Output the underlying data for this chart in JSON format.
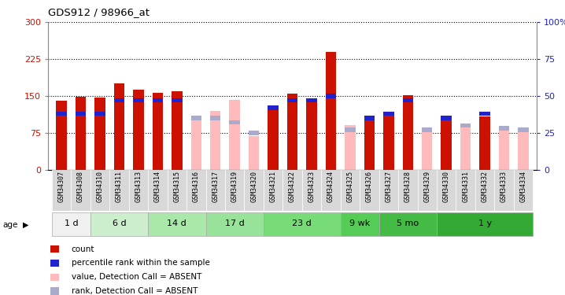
{
  "title": "GDS912 / 98966_at",
  "samples": [
    "GSM34307",
    "GSM34308",
    "GSM34310",
    "GSM34311",
    "GSM34313",
    "GSM34314",
    "GSM34315",
    "GSM34316",
    "GSM34317",
    "GSM34319",
    "GSM34320",
    "GSM34321",
    "GSM34322",
    "GSM34323",
    "GSM34324",
    "GSM34325",
    "GSM34326",
    "GSM34327",
    "GSM34328",
    "GSM34329",
    "GSM34330",
    "GSM34331",
    "GSM34332",
    "GSM34333",
    "GSM34334"
  ],
  "count_values": [
    140,
    148,
    146,
    175,
    162,
    157,
    160,
    null,
    null,
    null,
    null,
    122,
    155,
    145,
    240,
    null,
    100,
    115,
    152,
    null,
    100,
    null,
    108,
    null,
    null
  ],
  "absent_values": [
    null,
    null,
    null,
    null,
    null,
    null,
    null,
    105,
    120,
    142,
    68,
    null,
    null,
    null,
    null,
    90,
    null,
    null,
    null,
    82,
    null,
    88,
    null,
    85,
    80
  ],
  "rank_present_pct": [
    38,
    38,
    38,
    47,
    47,
    47,
    47,
    null,
    null,
    null,
    null,
    42,
    47,
    47,
    50,
    null,
    35,
    38,
    47,
    null,
    35,
    null,
    38,
    null,
    null
  ],
  "rank_absent_pct": [
    null,
    null,
    null,
    null,
    null,
    null,
    null,
    35,
    35,
    32,
    25,
    null,
    null,
    null,
    null,
    27,
    null,
    null,
    null,
    27,
    null,
    30,
    null,
    28,
    27
  ],
  "age_groups": [
    {
      "label": "1 d",
      "indices": [
        0,
        1
      ]
    },
    {
      "label": "6 d",
      "indices": [
        2,
        3,
        4
      ]
    },
    {
      "label": "14 d",
      "indices": [
        5,
        6,
        7
      ]
    },
    {
      "label": "17 d",
      "indices": [
        8,
        9,
        10
      ]
    },
    {
      "label": "23 d",
      "indices": [
        11,
        12,
        13,
        14
      ]
    },
    {
      "label": "9 wk",
      "indices": [
        15,
        16
      ]
    },
    {
      "label": "5 mo",
      "indices": [
        17,
        18,
        19
      ]
    },
    {
      "label": "1 y",
      "indices": [
        20,
        21,
        22,
        23,
        24
      ]
    }
  ],
  "age_colors": [
    "#f0f0f0",
    "#cceecc",
    "#aae8aa",
    "#99e299",
    "#77dc77",
    "#55cc55",
    "#44bb44",
    "#33aa33"
  ],
  "ylim_left": [
    0,
    300
  ],
  "ylim_right": [
    0,
    100
  ],
  "yticks_left": [
    0,
    75,
    150,
    225,
    300
  ],
  "yticks_right": [
    0,
    25,
    50,
    75,
    100
  ],
  "color_red": "#cc1100",
  "color_pink": "#ffbbbb",
  "color_blue": "#2222cc",
  "color_blue_light": "#aaaacc",
  "bar_width": 0.55
}
